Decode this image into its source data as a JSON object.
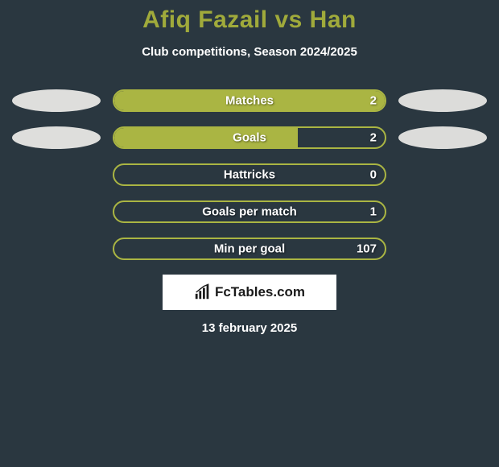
{
  "title": "Afiq Fazail vs Han",
  "subtitle": "Club competitions, Season 2024/2025",
  "logo_text": "FcTables.com",
  "date": "13 february 2025",
  "colors": {
    "background": "#2a3740",
    "accent": "#a0aa3b",
    "bar_border": "#aab543",
    "bar_fill": "#aab543",
    "ellipse_left": "#dededc",
    "ellipse_right": "#dcdcda",
    "text": "#ffffff"
  },
  "stats": [
    {
      "label": "Matches",
      "value": "2",
      "fill_pct": 100,
      "left_ellipse": true,
      "right_ellipse": true
    },
    {
      "label": "Goals",
      "value": "2",
      "fill_pct": 68,
      "left_ellipse": true,
      "right_ellipse": true
    },
    {
      "label": "Hattricks",
      "value": "0",
      "fill_pct": 0,
      "left_ellipse": false,
      "right_ellipse": false
    },
    {
      "label": "Goals per match",
      "value": "1",
      "fill_pct": 0,
      "left_ellipse": false,
      "right_ellipse": false
    },
    {
      "label": "Min per goal",
      "value": "107",
      "fill_pct": 0,
      "left_ellipse": false,
      "right_ellipse": false
    }
  ]
}
